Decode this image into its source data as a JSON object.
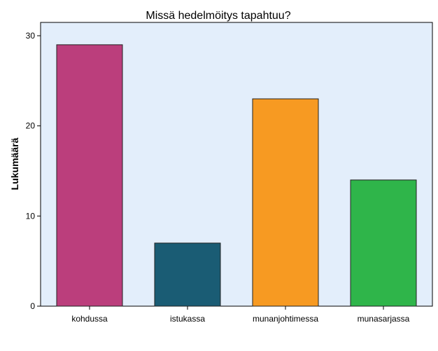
{
  "chart_data": {
    "type": "bar",
    "title": "Missä hedelmöitys tapahtuu?",
    "xlabel": "",
    "ylabel": "Lukumäärä",
    "categories": [
      "kohdussa",
      "istukassa",
      "munanjohtimessa",
      "munasarjassa"
    ],
    "values": [
      29,
      7,
      23,
      14
    ],
    "colors": [
      "#bb3e7c",
      "#1a5c74",
      "#f79a22",
      "#2fb54a"
    ],
    "ylim": [
      0,
      30
    ],
    "yticks": [
      0,
      10,
      20,
      30
    ],
    "grid": false,
    "legend": "none",
    "plot_background": "#e3eefb"
  }
}
